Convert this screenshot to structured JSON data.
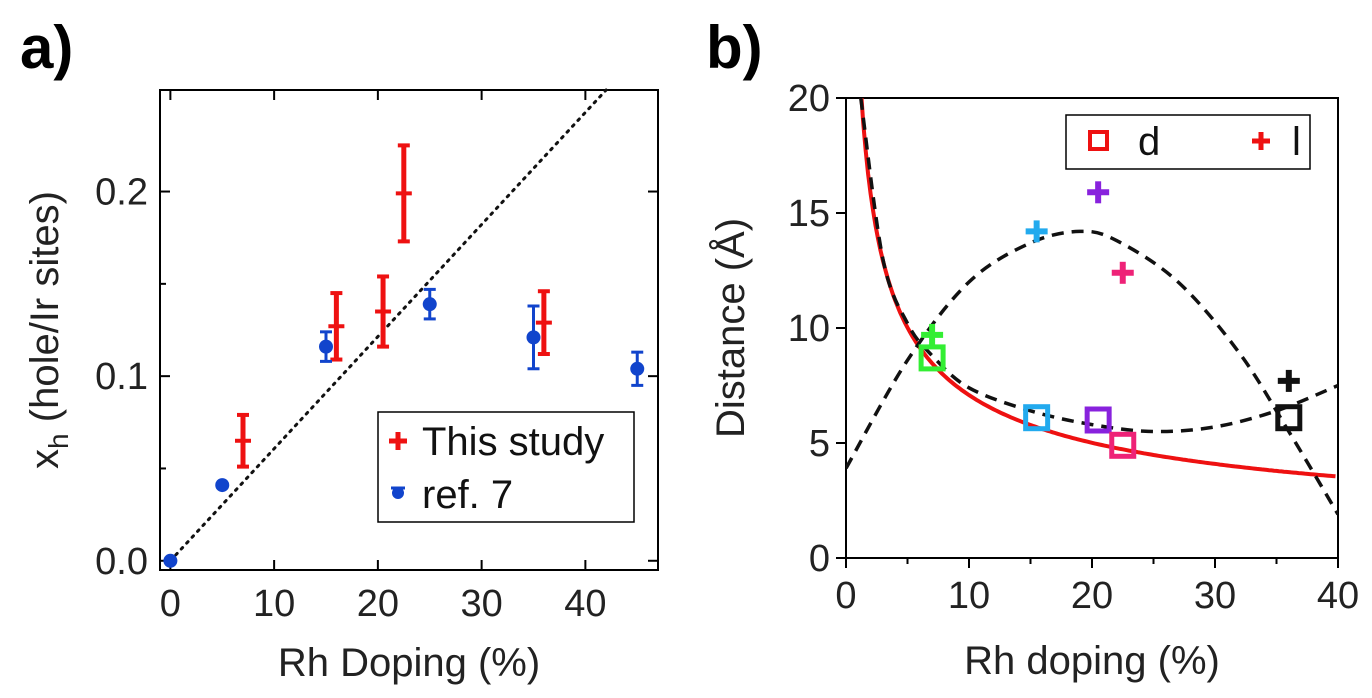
{
  "chart_data": [
    {
      "panel": "a)",
      "type": "scatter",
      "xlabel": "Rh Doping (%)",
      "ylabel_main": "x",
      "ylabel_sub": "h",
      "ylabel_rest": " (hole/Ir sites)",
      "xlim": [
        -1,
        47
      ],
      "ylim": [
        -0.005,
        0.255
      ],
      "xticks": [
        0,
        10,
        20,
        30,
        40
      ],
      "yticks": [
        0.0,
        0.1,
        0.2
      ],
      "ytick_labels": [
        "0.0",
        "0.1",
        "0.2"
      ],
      "reference_line": {
        "style": "dotted",
        "from": [
          0,
          0
        ],
        "to": [
          42,
          0.255
        ]
      },
      "series": [
        {
          "name": "This study",
          "color": "#ee1111",
          "marker": "cross",
          "x": [
            7,
            16,
            20.5,
            22.5,
            36
          ],
          "y": [
            0.065,
            0.127,
            0.135,
            0.199,
            0.129
          ],
          "err": [
            0.014,
            0.018,
            0.019,
            0.026,
            0.017
          ]
        },
        {
          "name": "ref. 7",
          "color": "#1144cc",
          "marker": "circle",
          "x": [
            0,
            5,
            15,
            25,
            35,
            45
          ],
          "y": [
            0.0,
            0.041,
            0.116,
            0.139,
            0.121,
            0.104
          ],
          "err": [
            0,
            0,
            0.008,
            0.008,
            0.017,
            0.009
          ]
        }
      ]
    },
    {
      "panel": "b)",
      "type": "scatter",
      "xlabel": "Rh doping (%)",
      "ylabel": "Distance (Å)",
      "xlim": [
        0,
        40
      ],
      "ylim": [
        0,
        20
      ],
      "xticks": [
        0,
        10,
        20,
        30,
        40
      ],
      "yticks": [
        0,
        5,
        10,
        15,
        20
      ],
      "legend": [
        {
          "label": "d",
          "marker": "square",
          "color": "#ee1111"
        },
        {
          "label": "l",
          "marker": "cross",
          "color": "#ee1111"
        }
      ],
      "fit_curves": [
        {
          "name": "d fit",
          "style": "solid",
          "color": "#ee1111",
          "model": "a/sqrt(x)",
          "a": 22.4
        },
        {
          "name": "d fit dashed",
          "style": "dashed",
          "color": "#111111",
          "model": "hyperbola",
          "points": [
            [
              1.2,
              20
            ],
            [
              3,
              13
            ],
            [
              5,
              10.2
            ],
            [
              7,
              8.8
            ],
            [
              10,
              7.4
            ],
            [
              15,
              6.4
            ],
            [
              20,
              5.8
            ],
            [
              25,
              5.5
            ],
            [
              30,
              5.7
            ],
            [
              35,
              6.4
            ],
            [
              40,
              7.5
            ]
          ]
        },
        {
          "name": "l fit dashed",
          "style": "dashed",
          "color": "#111111",
          "model": "parabola",
          "points": [
            [
              0,
              3.9
            ],
            [
              5,
              8.6
            ],
            [
              10,
              12.0
            ],
            [
              15,
              13.7
            ],
            [
              19,
              14.2
            ],
            [
              22,
              13.8
            ],
            [
              27,
              12.0
            ],
            [
              32,
              8.9
            ],
            [
              36,
              5.5
            ],
            [
              40,
              1.9
            ]
          ]
        }
      ],
      "points_d": [
        {
          "x": 7,
          "y": 8.7,
          "color": "#33ee33"
        },
        {
          "x": 15.5,
          "y": 6.1,
          "color": "#22aaee"
        },
        {
          "x": 20.5,
          "y": 6.0,
          "color": "#8822dd"
        },
        {
          "x": 22.5,
          "y": 4.9,
          "color": "#ee2277"
        },
        {
          "x": 36,
          "y": 6.1,
          "color": "#111111"
        }
      ],
      "points_l": [
        {
          "x": 7,
          "y": 9.7,
          "color": "#33ee33"
        },
        {
          "x": 15.5,
          "y": 14.2,
          "color": "#22aaee"
        },
        {
          "x": 20.5,
          "y": 15.9,
          "color": "#8822dd"
        },
        {
          "x": 22.5,
          "y": 12.4,
          "color": "#ee2277"
        },
        {
          "x": 36,
          "y": 7.7,
          "color": "#111111"
        }
      ]
    }
  ]
}
